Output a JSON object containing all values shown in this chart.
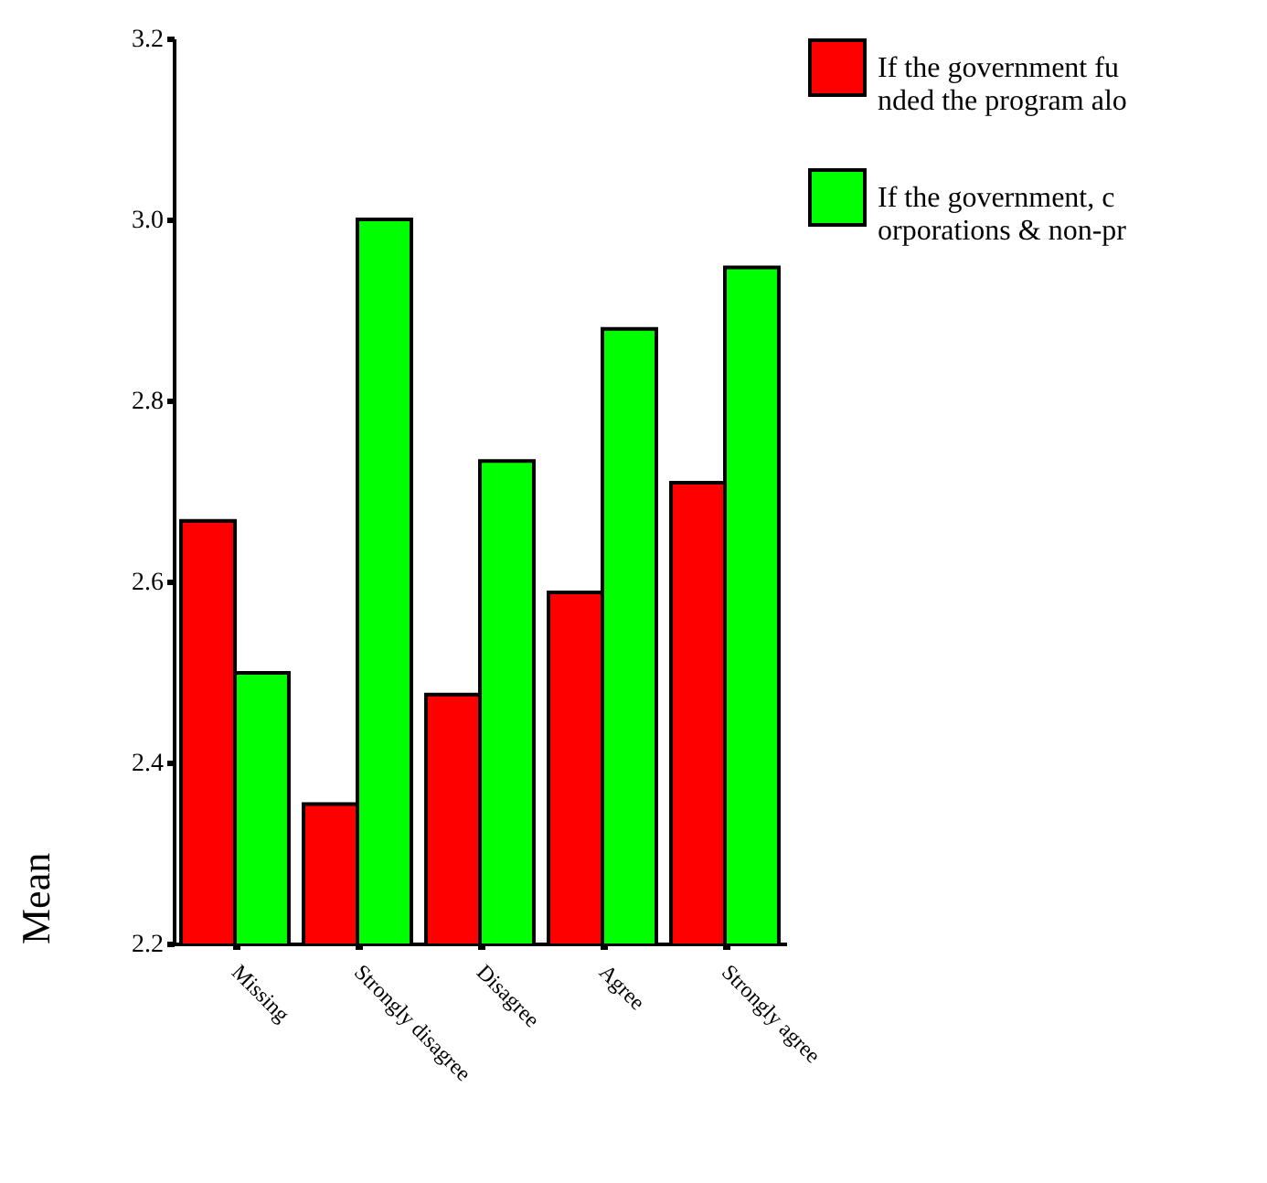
{
  "chart_data": {
    "type": "bar",
    "ylabel": "Mean",
    "categories": [
      "Missing",
      "Strongly disagree",
      "Disagree",
      "Agree",
      "Strongly agree"
    ],
    "series": [
      {
        "name": "If the government funded the program alo",
        "color": "#ff0000",
        "values": [
          2.667,
          2.354,
          2.475,
          2.588,
          2.709
        ]
      },
      {
        "name": "If the government, corporations & non-pr",
        "color": "#00ff00",
        "values": [
          2.499,
          3.0,
          2.733,
          2.879,
          2.947
        ]
      }
    ],
    "ylim": [
      2.2,
      3.2
    ],
    "yticks": [
      2.2,
      2.4,
      2.6,
      2.8,
      {
        "value": 3,
        "label": "3.0"
      },
      3.2
    ],
    "grid": false,
    "legend": "right"
  }
}
